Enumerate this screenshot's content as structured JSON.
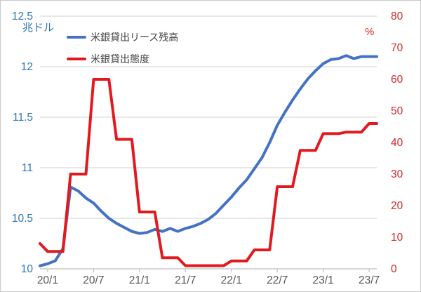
{
  "chart": {
    "legend": [
      {
        "label": "米銀貸出リース残高",
        "color": "#4472C4"
      },
      {
        "label": "米銀貸出態度",
        "color": "#E11A1F"
      }
    ],
    "left_axis": {
      "unit": "兆ドル",
      "color": "#2E75B6",
      "ticks": [
        "12.5",
        "12",
        "11.5",
        "11",
        "10.5",
        "10"
      ]
    },
    "right_axis": {
      "unit": "%",
      "color": "#CE2B2B",
      "ticks": [
        "80",
        "70",
        "60",
        "50",
        "40",
        "30",
        "20",
        "10",
        "0"
      ]
    },
    "x_axis": {
      "color": "#595959",
      "labels": [
        "20/1",
        "20/7",
        "21/1",
        "21/7",
        "22/1",
        "22/7",
        "23/1",
        "23/7"
      ]
    },
    "grid_color": "#d9d9d9",
    "axis_line_color": "#bfbfbf"
  },
  "chart_data": {
    "type": "line",
    "title": "",
    "grid": true,
    "legend_position": "inside-top-left",
    "left_ylim": [
      10,
      12.5
    ],
    "right_ylim": [
      0,
      80
    ],
    "x": [
      "19/12",
      "20/1",
      "20/2",
      "20/3",
      "20/4",
      "20/5",
      "20/6",
      "20/7",
      "20/8",
      "20/9",
      "20/10",
      "20/11",
      "20/12",
      "21/1",
      "21/2",
      "21/3",
      "21/4",
      "21/5",
      "21/6",
      "21/7",
      "21/8",
      "21/9",
      "21/10",
      "21/11",
      "21/12",
      "22/1",
      "22/2",
      "22/3",
      "22/4",
      "22/5",
      "22/6",
      "22/7",
      "22/8",
      "22/9",
      "22/10",
      "22/11",
      "22/12",
      "23/1",
      "23/2",
      "23/3",
      "23/4",
      "23/5",
      "23/6",
      "23/7",
      "23/8"
    ],
    "x_tick_indices": [
      1,
      7,
      13,
      19,
      25,
      31,
      37,
      43
    ],
    "series": [
      {
        "name": "米銀貸出リース残高",
        "axis": "left",
        "unit": "兆ドル",
        "color": "#4472C4",
        "values": [
          10.03,
          10.05,
          10.08,
          10.2,
          10.81,
          10.77,
          10.7,
          10.65,
          10.57,
          10.5,
          10.45,
          10.41,
          10.37,
          10.35,
          10.36,
          10.39,
          10.37,
          10.4,
          10.37,
          10.4,
          10.42,
          10.45,
          10.49,
          10.55,
          10.63,
          10.71,
          10.8,
          10.88,
          10.99,
          11.1,
          11.25,
          11.42,
          11.55,
          11.67,
          11.78,
          11.88,
          11.96,
          12.03,
          12.07,
          12.08,
          12.11,
          12.08,
          12.1,
          12.1,
          12.1
        ]
      },
      {
        "name": "米銀貸出態度",
        "axis": "right",
        "unit": "%",
        "color": "#E11A1F",
        "values": [
          8,
          5.5,
          5.5,
          5.5,
          30,
          30,
          30,
          60,
          60,
          60,
          41,
          41,
          41,
          18,
          18,
          18,
          3.5,
          3.5,
          3.5,
          1,
          1,
          1,
          1,
          1,
          1,
          2.5,
          2.5,
          2.5,
          6,
          6,
          6,
          26,
          26,
          26,
          37.5,
          37.5,
          37.5,
          42.8,
          42.8,
          42.8,
          43.3,
          43.3,
          43.3,
          46,
          46
        ]
      }
    ]
  }
}
